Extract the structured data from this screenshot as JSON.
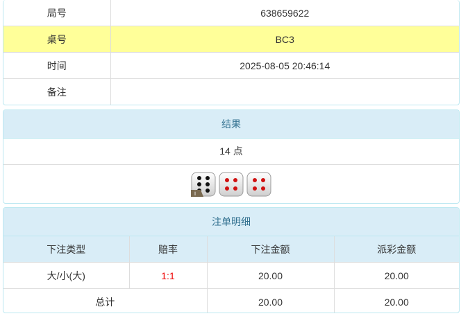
{
  "info": {
    "rows": [
      {
        "label": "局号",
        "value": "638659622"
      },
      {
        "label": "桌号",
        "value": "BC3"
      },
      {
        "label": "时间",
        "value": "2025-08-05 20:46:14"
      },
      {
        "label": "备注",
        "value": ""
      }
    ]
  },
  "result": {
    "title": "结果",
    "points": "14 点",
    "dice": [
      6,
      4,
      4
    ],
    "info_badge": "i"
  },
  "bets": {
    "title": "注单明细",
    "headers": [
      "下注类型",
      "赔率",
      "下注金额",
      "派彩金额"
    ],
    "rows": [
      {
        "type": "大/小(大)",
        "odds": "1:1",
        "amount": "20.00",
        "payout": "20.00"
      }
    ],
    "total": {
      "label": "总计",
      "amount": "20.00",
      "payout": "20.00"
    }
  },
  "colors": {
    "header_bg": "#d9edf7",
    "header_text": "#31708f",
    "highlight": "#ffff99",
    "odds": "#ee0000"
  }
}
